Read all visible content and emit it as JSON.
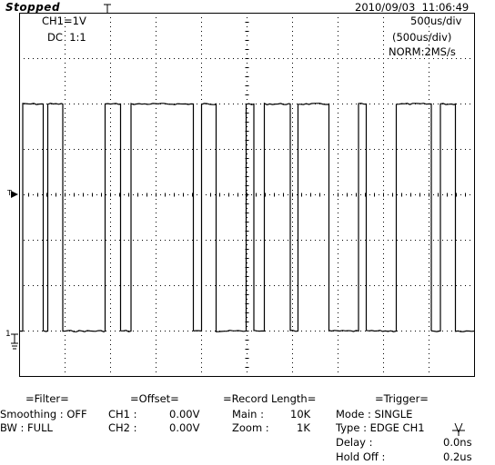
{
  "header": {
    "status": "Stopped",
    "datetime": "2010/09/03  11:06:49"
  },
  "screen": {
    "channel_scale": "CH1=1V",
    "coupling": "DC  1:1",
    "timebase": "500us/div",
    "timebase_zoom": "(500us/div)",
    "acquisition": "NORM:2MS/s",
    "trigger_marker": "T",
    "ground_marker": "1"
  },
  "waveform": {
    "high_level_div": 2.0,
    "low_level_div": -3.0,
    "transitions_div": [
      0.07,
      0.52,
      0.62,
      0.95,
      1.88,
      2.22,
      2.45,
      3.82,
      4.0,
      4.32,
      4.98,
      5.15,
      5.38,
      5.95,
      6.12,
      6.8,
      7.45,
      7.62,
      8.28,
      9.05,
      9.25,
      9.58
    ]
  },
  "panel": {
    "filter": {
      "title": "=Filter=",
      "smoothing": "Smoothing : OFF",
      "bw": "BW : FULL"
    },
    "offset": {
      "title": "=Offset=",
      "ch1_label": "CH1 :",
      "ch1_value": "0.00V",
      "ch2_label": "CH2 :",
      "ch2_value": "0.00V"
    },
    "record": {
      "title": "=Record Length=",
      "main_label": "Main :",
      "main_value": "10K",
      "zoom_label": "Zoom :",
      "zoom_value": "1K"
    },
    "trigger": {
      "title": "=Trigger=",
      "mode": "Mode : SINGLE",
      "type": "Type : EDGE CH1",
      "delay_label": "Delay :",
      "delay_value": "0.0ns",
      "holdoff_label": "Hold Off :",
      "holdoff_value": "0.2us"
    }
  },
  "colors": {
    "trace": "#000000",
    "grid": "#000000",
    "background": "#ffffff"
  }
}
